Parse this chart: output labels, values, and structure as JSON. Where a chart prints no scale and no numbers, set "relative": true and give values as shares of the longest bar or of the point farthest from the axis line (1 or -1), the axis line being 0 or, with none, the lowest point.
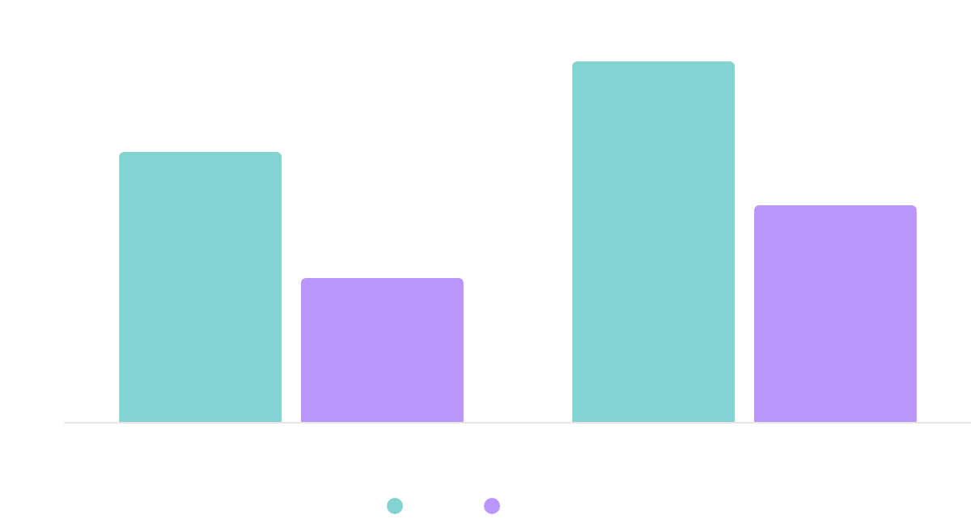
{
  "chart_data": {
    "type": "bar",
    "relative": true,
    "categories": [
      null,
      null
    ],
    "series": [
      {
        "color": "#83d3d3",
        "values": [
          0.749,
          1
        ]
      },
      {
        "color": "#bb95fe",
        "values": [
          0.399,
          0.601
        ]
      }
    ]
  }
}
